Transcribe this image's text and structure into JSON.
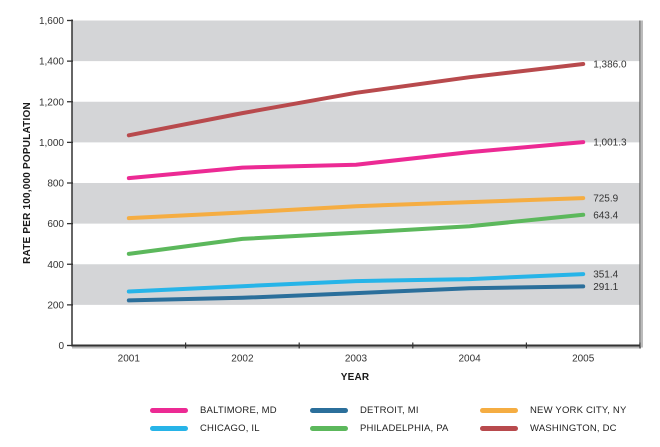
{
  "chart_data": {
    "type": "line",
    "title": "",
    "xlabel": "YEAR",
    "ylabel": "RATE PER 100,000 POPULATION",
    "categories": [
      "2001",
      "2002",
      "2003",
      "2004",
      "2005"
    ],
    "ylim": [
      0,
      1600
    ],
    "yticks": [
      0,
      200,
      400,
      600,
      800,
      1000,
      1200,
      1400,
      1600
    ],
    "ytick_labels": [
      "0",
      "200",
      "400",
      "600",
      "800",
      "1,000",
      "1,200",
      "1,400",
      "1,600"
    ],
    "grid": "alternating horizontal bands",
    "legend_position": "bottom",
    "series": [
      {
        "name": "BALTIMORE, MD",
        "color": "#ec2a94",
        "values": [
          824,
          876,
          890,
          952,
          1001.3
        ],
        "end_label": "1,001.3"
      },
      {
        "name": "PHILADELPHIA, PA",
        "color": "#5cb85c",
        "values": [
          451,
          525,
          555,
          587,
          643.4
        ],
        "end_label": "643.4"
      },
      {
        "name": "CHICAGO, IL",
        "color": "#27b4e8",
        "values": [
          266,
          292,
          317,
          327,
          351.4
        ],
        "end_label": "351.4"
      },
      {
        "name": "NEW YORK CITY, NY",
        "color": "#f5ad42",
        "values": [
          627,
          655,
          686,
          706,
          725.9
        ],
        "end_label": "725.9"
      },
      {
        "name": "DETROIT, MI",
        "color": "#2b6f9b",
        "values": [
          222,
          235,
          258,
          282,
          291.1
        ],
        "end_label": "291.1"
      },
      {
        "name": "WASHINGTON, DC",
        "color": "#b84a4d",
        "values": [
          1035,
          1144,
          1244,
          1321,
          1386.0
        ],
        "end_label": "1,386.0"
      }
    ],
    "legend_order": [
      0,
      2,
      4,
      1,
      3,
      5
    ]
  },
  "colors": {
    "band": "#d4d5d7",
    "axis": "#333333"
  }
}
